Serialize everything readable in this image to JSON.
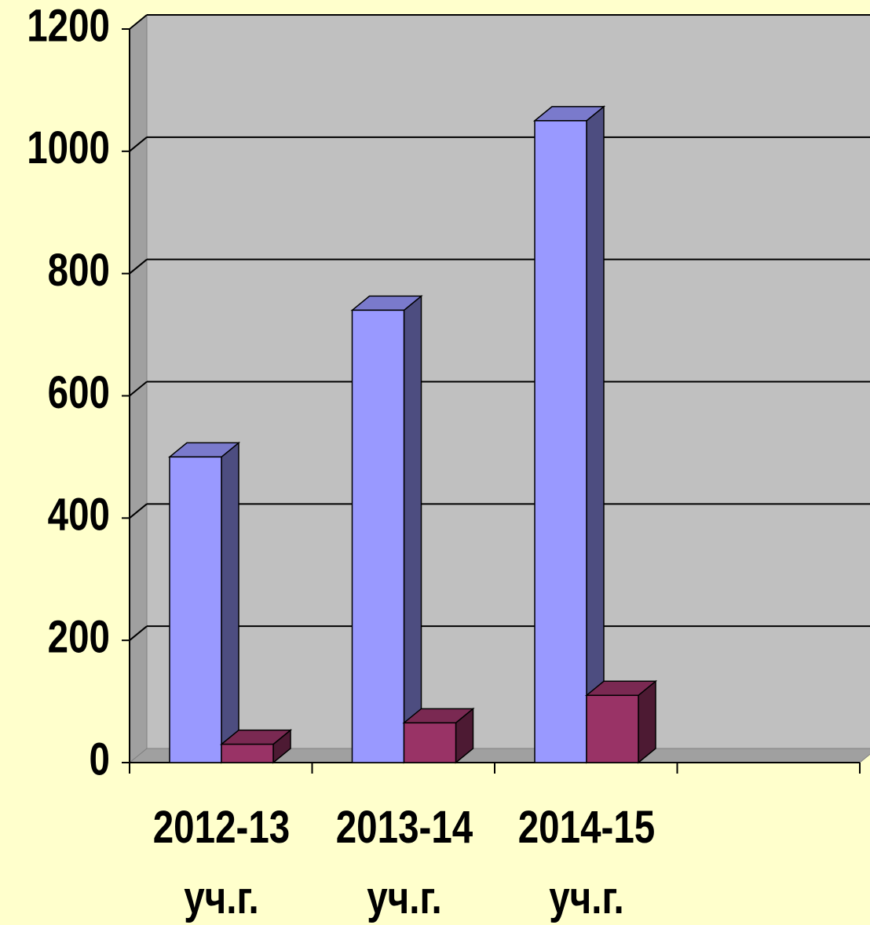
{
  "chart_data": {
    "type": "bar3d",
    "categories": [
      "2012-13 уч.г.",
      "2013-14 уч.г.",
      "2014-15 уч.г.",
      null
    ],
    "series": [
      {
        "color": "#9999ff",
        "values": [
          500,
          740,
          1050,
          null
        ]
      },
      {
        "color": "#993366",
        "values": [
          30,
          65,
          110,
          null
        ]
      }
    ],
    "ylim": [
      0,
      1200
    ],
    "yticks": [
      0,
      200,
      400,
      600,
      800,
      1000,
      1200
    ],
    "grid": true,
    "wall_color": "#c0c0c0"
  }
}
